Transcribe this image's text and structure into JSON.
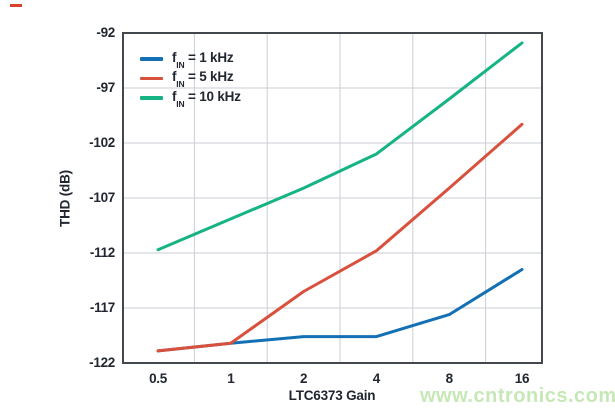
{
  "watermark": {
    "text": "www.cntronics.com",
    "color": "#c6e7b6"
  },
  "decorations": {
    "corner_mark_color": "#d6442e"
  },
  "chart_data": {
    "type": "line",
    "title": "",
    "xlabel": "LTC6373 Gain",
    "ylabel": "THD (dB)",
    "x_scale": "log2",
    "x": [
      0.5,
      1,
      2,
      4,
      8,
      16
    ],
    "x_tick_labels": [
      "0.5",
      "1",
      "2",
      "4",
      "8",
      "16"
    ],
    "y_ticks": [
      -92,
      -97,
      -102,
      -107,
      -112,
      -117,
      -122
    ],
    "ylim": [
      -122,
      -92
    ],
    "grid": true,
    "grid_color": "#cbced3",
    "border_color": "#43474e",
    "text_color": "#212631",
    "legend_position": "top-left-inside",
    "series": [
      {
        "name_prefix": "f",
        "name_sub": "IN",
        "name_suffix": "= 1 kHz",
        "color": "#1470b4",
        "values": [
          -120.9,
          -120.2,
          -119.6,
          -119.6,
          -117.6,
          -113.5
        ]
      },
      {
        "name_prefix": "f",
        "name_sub": "IN",
        "name_suffix": "= 5 kHz",
        "color": "#d9503c",
        "values": [
          -120.9,
          -120.2,
          -115.5,
          -111.8,
          -106.1,
          -100.3
        ]
      },
      {
        "name_prefix": "f",
        "name_sub": "IN",
        "name_suffix": "= 10 kHz",
        "color": "#16b384",
        "values": [
          -111.7,
          -108.9,
          -106.1,
          -103.0,
          -98.0,
          -92.9
        ]
      }
    ]
  }
}
